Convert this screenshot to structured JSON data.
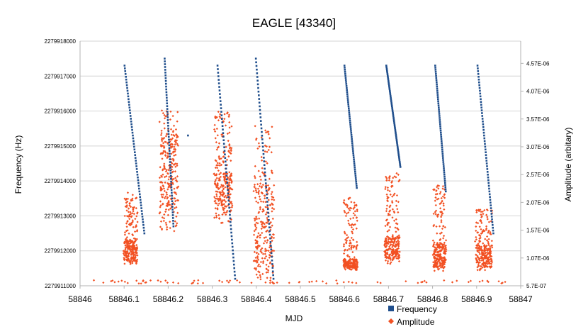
{
  "chart_data": {
    "type": "scatter",
    "title": "EAGLE [43340]",
    "xlabel": "MJD",
    "ylabel": "Frequency (Hz)",
    "y2label": "Amplitude (arbitary)",
    "xlim": [
      58846,
      58847
    ],
    "ylim": [
      2279911000,
      2279918000
    ],
    "y2lim": [
      5.7e-07,
      4.97e-06
    ],
    "x_ticks": [
      "58846",
      "58846.1",
      "58846.2",
      "58846.3",
      "58846.4",
      "58846.5",
      "58846.6",
      "58846.7",
      "58846.8",
      "58846.9",
      "58847"
    ],
    "y_ticks": [
      "2279911000",
      "2279912000",
      "2279913000",
      "2279914000",
      "2279915000",
      "2279916000",
      "2279917000",
      "2279918000"
    ],
    "y2_ticks": [
      "5.7E-07",
      "1.07E-06",
      "1.57E-06",
      "2.07E-06",
      "2.57E-06",
      "3.07E-06",
      "3.57E-06",
      "4.07E-06",
      "4.57E-06"
    ],
    "grid": "horizontal",
    "legend": "bottom-right",
    "series": [
      {
        "name": "Frequency",
        "axis": "left",
        "color": "#1f4e8c",
        "marker": "square",
        "segments": [
          {
            "x": [
              58846.101,
              58846.146
            ],
            "y": [
              2279917300,
              2279912500
            ]
          },
          {
            "x": [
              58846.192,
              58846.212
            ],
            "y": [
              2279917500,
              2279912700
            ]
          },
          {
            "x": [
              58846.312,
              58846.352
            ],
            "y": [
              2279917300,
              2279911200
            ]
          },
          {
            "x": [
              58846.399,
              58846.439
            ],
            "y": [
              2279917500,
              2279911200
            ]
          },
          {
            "x": [
              58846.6,
              58846.628
            ],
            "y": [
              2279917300,
              2279913800
            ]
          },
          {
            "x": [
              58846.695,
              58846.727
            ],
            "y": [
              2279917300,
              2279914400
            ]
          },
          {
            "x": [
              58846.806,
              58846.83
            ],
            "y": [
              2279917300,
              2279913700
            ]
          },
          {
            "x": [
              58846.902,
              58846.938
            ],
            "y": [
              2279917300,
              2279912500
            ]
          }
        ],
        "extra_points": [
          [
            58846.245,
            2279915300
          ]
        ]
      },
      {
        "name": "Amplitude",
        "axis": "right",
        "color": "#f25022",
        "marker": "diamond",
        "bursts": [
          {
            "x": [
              58846.1,
              58846.13
            ],
            "y_range": [
              9.5e-07,
              2.25e-06
            ],
            "core": [
              1e-06,
              1.4e-06
            ]
          },
          {
            "x": [
              58846.18,
              58846.222
            ],
            "y_range": [
              1.55e-06,
              3.75e-06
            ],
            "core": [
              2e-06,
              3.3e-06
            ]
          },
          {
            "x": [
              58846.305,
              58846.345
            ],
            "y_range": [
              1.7e-06,
              3.7e-06
            ],
            "core": [
              1.9e-06,
              2.6e-06
            ]
          },
          {
            "x": [
              58846.395,
              58846.44
            ],
            "y_range": [
              6.5e-07,
              3.45e-06
            ],
            "core": [
              8e-07,
              2.4e-06
            ]
          },
          {
            "x": [
              58846.598,
              58846.63
            ],
            "y_range": [
              8.5e-07,
              2.2e-06
            ],
            "core": [
              8.8e-07,
              1.05e-06
            ]
          },
          {
            "x": [
              58846.692,
              58846.725
            ],
            "y_range": [
              9.5e-07,
              2.6e-06
            ],
            "core": [
              1.05e-06,
              1.45e-06
            ]
          },
          {
            "x": [
              58846.802,
              58846.83
            ],
            "y_range": [
              8e-07,
              2.4e-06
            ],
            "core": [
              9e-07,
              1.35e-06
            ]
          },
          {
            "x": [
              58846.898,
              58846.935
            ],
            "y_range": [
              8.5e-07,
              1.95e-06
            ],
            "core": [
              9e-07,
              1.3e-06
            ]
          }
        ],
        "baseline": 6.4e-07
      }
    ]
  }
}
